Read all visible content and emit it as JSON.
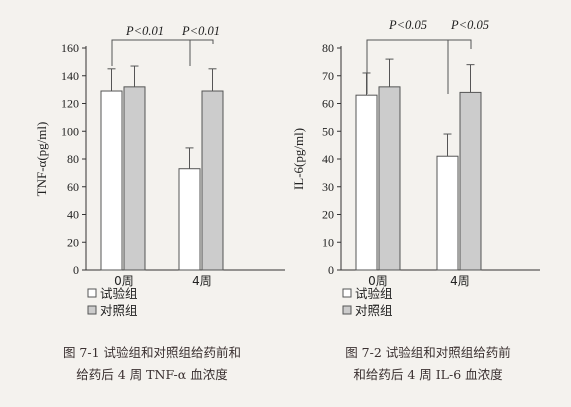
{
  "chart_data": [
    {
      "type": "bar",
      "ylabel": "TNF-α(pg/ml)",
      "ylim": [
        0,
        160
      ],
      "yticks": [
        0,
        20,
        40,
        60,
        80,
        100,
        120,
        140,
        160
      ],
      "categories": [
        "0周",
        "4周"
      ],
      "series": [
        {
          "name": "试验组",
          "values": [
            129,
            73
          ],
          "errors": [
            16,
            15
          ],
          "color": "#ffffff"
        },
        {
          "name": "对照组",
          "values": [
            132,
            129
          ],
          "errors": [
            15,
            16
          ],
          "color": "#cccccc"
        }
      ],
      "annotations": [
        "P<0.01",
        "P<0.01"
      ],
      "legend_position": "bottom-left",
      "caption": [
        "图 7-1   试验组和对照组给药前和",
        "给药后 4 周 TNF-α 血浓度"
      ]
    },
    {
      "type": "bar",
      "ylabel": "IL-6(pg/ml)",
      "ylim": [
        0,
        80
      ],
      "yticks": [
        0,
        10,
        20,
        30,
        40,
        50,
        60,
        70,
        80
      ],
      "categories": [
        "0周",
        "4周"
      ],
      "series": [
        {
          "name": "试验组",
          "values": [
            63,
            41
          ],
          "errors": [
            8,
            8
          ],
          "color": "#ffffff"
        },
        {
          "name": "对照组",
          "values": [
            66,
            64
          ],
          "errors": [
            10,
            10
          ],
          "color": "#cccccc"
        }
      ],
      "annotations": [
        "P<0.05",
        "P<0.05"
      ],
      "legend_position": "bottom-left",
      "caption": [
        "图 7-2   试验组和对照组给药前",
        "和给药后 4 周 IL-6 血浓度"
      ]
    }
  ]
}
